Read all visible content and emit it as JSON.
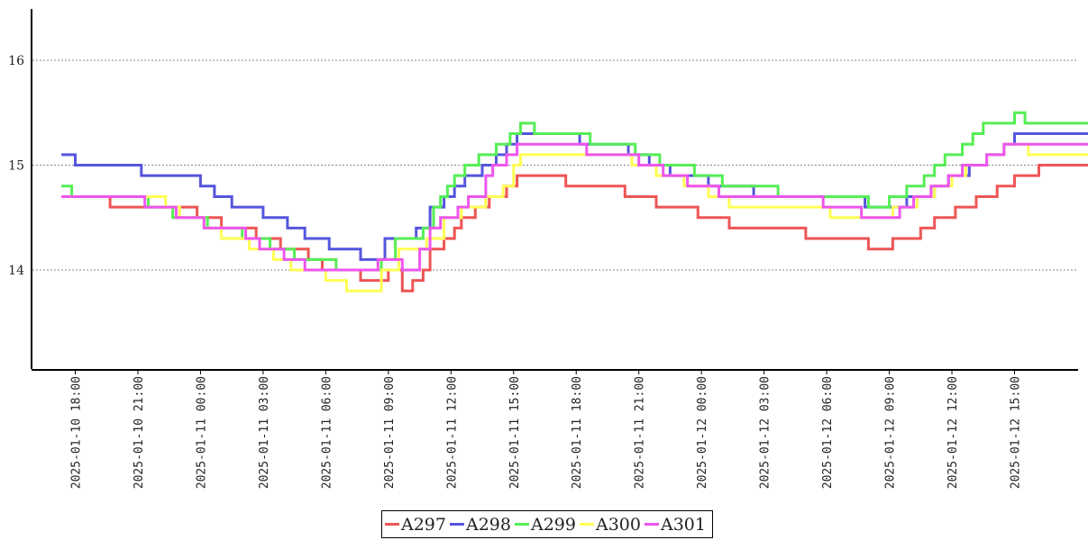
{
  "chart_data": {
    "type": "line",
    "step": true,
    "title": "",
    "xlabel": "",
    "ylabel": "",
    "y_ticks": [
      14,
      15,
      16
    ],
    "ylim": [
      13.05,
      16.5
    ],
    "x_tick_labels": [
      "2025-01-10 18:00",
      "2025-01-10 21:00",
      "2025-01-11 00:00",
      "2025-01-11 03:00",
      "2025-01-11 06:00",
      "2025-01-11 09:00",
      "2025-01-11 12:00",
      "2025-01-11 15:00",
      "2025-01-11 18:00",
      "2025-01-11 21:00",
      "2025-01-12 00:00",
      "2025-01-12 03:00",
      "2025-01-12 06:00",
      "2025-01-12 09:00",
      "2025-01-12 12:00",
      "2025-01-12 15:00"
    ],
    "x_range": [
      "2025-01-10 17:20",
      "2025-01-12 18:50"
    ],
    "grid": "horizontal dotted",
    "legend_position": "bottom-center",
    "series": [
      {
        "name": "A297",
        "color": "#ee5555",
        "points": [
          [
            "2025-01-10 17:20",
            14.7
          ],
          [
            "2025-01-10 19:40",
            14.6
          ],
          [
            "2025-01-10 23:50",
            14.5
          ],
          [
            "2025-01-11 01:00",
            14.4
          ],
          [
            "2025-01-11 02:40",
            14.3
          ],
          [
            "2025-01-11 03:50",
            14.2
          ],
          [
            "2025-01-11 05:10",
            14.1
          ],
          [
            "2025-01-11 05:50",
            14.0
          ],
          [
            "2025-01-11 07:40",
            13.9
          ],
          [
            "2025-01-11 09:00",
            14.0
          ],
          [
            "2025-01-11 09:40",
            13.8
          ],
          [
            "2025-01-11 10:10",
            13.9
          ],
          [
            "2025-01-11 10:40",
            14.0
          ],
          [
            "2025-01-11 11:00",
            14.2
          ],
          [
            "2025-01-11 11:40",
            14.3
          ],
          [
            "2025-01-11 12:10",
            14.4
          ],
          [
            "2025-01-11 12:30",
            14.5
          ],
          [
            "2025-01-11 13:10",
            14.6
          ],
          [
            "2025-01-11 13:50",
            14.7
          ],
          [
            "2025-01-11 14:40",
            14.8
          ],
          [
            "2025-01-11 15:10",
            14.9
          ],
          [
            "2025-01-11 17:30",
            14.8
          ],
          [
            "2025-01-11 20:20",
            14.7
          ],
          [
            "2025-01-11 21:50",
            14.6
          ],
          [
            "2025-01-11 23:50",
            14.5
          ],
          [
            "2025-01-12 01:20",
            14.4
          ],
          [
            "2025-01-12 05:00",
            14.3
          ],
          [
            "2025-01-12 08:00",
            14.2
          ],
          [
            "2025-01-12 09:10",
            14.3
          ],
          [
            "2025-01-12 10:30",
            14.4
          ],
          [
            "2025-01-12 11:10",
            14.5
          ],
          [
            "2025-01-12 12:10",
            14.6
          ],
          [
            "2025-01-12 13:10",
            14.7
          ],
          [
            "2025-01-12 14:10",
            14.8
          ],
          [
            "2025-01-12 15:00",
            14.9
          ],
          [
            "2025-01-12 16:10",
            15.0
          ],
          [
            "2025-01-12 18:50",
            15.0
          ]
        ]
      },
      {
        "name": "A298",
        "color": "#5555dd",
        "points": [
          [
            "2025-01-10 17:20",
            15.1
          ],
          [
            "2025-01-10 18:00",
            15.0
          ],
          [
            "2025-01-10 21:10",
            14.9
          ],
          [
            "2025-01-11 00:00",
            14.8
          ],
          [
            "2025-01-11 00:40",
            14.7
          ],
          [
            "2025-01-11 01:30",
            14.6
          ],
          [
            "2025-01-11 03:00",
            14.5
          ],
          [
            "2025-01-11 04:10",
            14.4
          ],
          [
            "2025-01-11 05:00",
            14.3
          ],
          [
            "2025-01-11 06:10",
            14.2
          ],
          [
            "2025-01-11 07:40",
            14.1
          ],
          [
            "2025-01-11 08:50",
            14.3
          ],
          [
            "2025-01-11 10:20",
            14.4
          ],
          [
            "2025-01-11 11:00",
            14.6
          ],
          [
            "2025-01-11 11:40",
            14.7
          ],
          [
            "2025-01-11 12:10",
            14.8
          ],
          [
            "2025-01-11 12:40",
            14.9
          ],
          [
            "2025-01-11 13:30",
            15.0
          ],
          [
            "2025-01-11 14:10",
            15.1
          ],
          [
            "2025-01-11 14:40",
            15.2
          ],
          [
            "2025-01-11 15:10",
            15.3
          ],
          [
            "2025-01-11 18:10",
            15.2
          ],
          [
            "2025-01-11 20:30",
            15.1
          ],
          [
            "2025-01-11 21:30",
            15.0
          ],
          [
            "2025-01-11 22:30",
            14.9
          ],
          [
            "2025-01-12 00:20",
            14.8
          ],
          [
            "2025-01-12 02:30",
            14.7
          ],
          [
            "2025-01-12 07:50",
            14.6
          ],
          [
            "2025-01-12 09:50",
            14.7
          ],
          [
            "2025-01-12 11:10",
            14.8
          ],
          [
            "2025-01-12 11:50",
            14.9
          ],
          [
            "2025-01-12 12:50",
            15.0
          ],
          [
            "2025-01-12 13:40",
            15.1
          ],
          [
            "2025-01-12 14:30",
            15.2
          ],
          [
            "2025-01-12 15:00",
            15.3
          ],
          [
            "2025-01-12 18:50",
            15.3
          ]
        ]
      },
      {
        "name": "A299",
        "color": "#55ee55",
        "points": [
          [
            "2025-01-10 17:20",
            14.8
          ],
          [
            "2025-01-10 17:50",
            14.7
          ],
          [
            "2025-01-10 21:30",
            14.6
          ],
          [
            "2025-01-10 22:40",
            14.5
          ],
          [
            "2025-01-11 00:20",
            14.4
          ],
          [
            "2025-01-11 02:00",
            14.3
          ],
          [
            "2025-01-11 03:20",
            14.2
          ],
          [
            "2025-01-11 04:30",
            14.1
          ],
          [
            "2025-01-11 06:30",
            14.0
          ],
          [
            "2025-01-11 08:40",
            14.1
          ],
          [
            "2025-01-11 09:20",
            14.3
          ],
          [
            "2025-01-11 10:40",
            14.4
          ],
          [
            "2025-01-11 11:10",
            14.6
          ],
          [
            "2025-01-11 11:30",
            14.7
          ],
          [
            "2025-01-11 11:50",
            14.8
          ],
          [
            "2025-01-11 12:10",
            14.9
          ],
          [
            "2025-01-11 12:40",
            15.0
          ],
          [
            "2025-01-11 13:20",
            15.1
          ],
          [
            "2025-01-11 14:10",
            15.2
          ],
          [
            "2025-01-11 14:50",
            15.3
          ],
          [
            "2025-01-11 15:20",
            15.4
          ],
          [
            "2025-01-11 16:00",
            15.3
          ],
          [
            "2025-01-11 18:40",
            15.2
          ],
          [
            "2025-01-11 20:50",
            15.1
          ],
          [
            "2025-01-11 22:00",
            15.0
          ],
          [
            "2025-01-11 23:40",
            14.9
          ],
          [
            "2025-01-12 01:00",
            14.8
          ],
          [
            "2025-01-12 03:40",
            14.7
          ],
          [
            "2025-01-12 08:00",
            14.6
          ],
          [
            "2025-01-12 09:00",
            14.7
          ],
          [
            "2025-01-12 09:50",
            14.8
          ],
          [
            "2025-01-12 10:40",
            14.9
          ],
          [
            "2025-01-12 11:10",
            15.0
          ],
          [
            "2025-01-12 11:40",
            15.1
          ],
          [
            "2025-01-12 12:30",
            15.2
          ],
          [
            "2025-01-12 13:00",
            15.3
          ],
          [
            "2025-01-12 13:30",
            15.4
          ],
          [
            "2025-01-12 15:00",
            15.5
          ],
          [
            "2025-01-12 15:30",
            15.4
          ],
          [
            "2025-01-12 18:50",
            15.4
          ]
        ]
      },
      {
        "name": "A300",
        "color": "#ffff55",
        "points": [
          [
            "2025-01-10 17:20",
            14.7
          ],
          [
            "2025-01-10 22:20",
            14.6
          ],
          [
            "2025-01-10 23:00",
            14.5
          ],
          [
            "2025-01-11 00:10",
            14.4
          ],
          [
            "2025-01-11 01:00",
            14.3
          ],
          [
            "2025-01-11 02:20",
            14.2
          ],
          [
            "2025-01-11 03:30",
            14.1
          ],
          [
            "2025-01-11 04:20",
            14.0
          ],
          [
            "2025-01-11 06:00",
            13.9
          ],
          [
            "2025-01-11 07:00",
            13.8
          ],
          [
            "2025-01-11 08:40",
            14.0
          ],
          [
            "2025-01-11 09:30",
            14.2
          ],
          [
            "2025-01-11 10:50",
            14.3
          ],
          [
            "2025-01-11 11:40",
            14.5
          ],
          [
            "2025-01-11 12:30",
            14.6
          ],
          [
            "2025-01-11 13:40",
            14.7
          ],
          [
            "2025-01-11 14:30",
            14.8
          ],
          [
            "2025-01-11 15:00",
            15.0
          ],
          [
            "2025-01-11 15:20",
            15.1
          ],
          [
            "2025-01-11 20:40",
            15.0
          ],
          [
            "2025-01-11 21:50",
            14.9
          ],
          [
            "2025-01-11 23:10",
            14.8
          ],
          [
            "2025-01-12 00:20",
            14.7
          ],
          [
            "2025-01-12 01:20",
            14.6
          ],
          [
            "2025-01-12 06:10",
            14.5
          ],
          [
            "2025-01-12 09:10",
            14.6
          ],
          [
            "2025-01-12 10:20",
            14.7
          ],
          [
            "2025-01-12 11:10",
            14.8
          ],
          [
            "2025-01-12 12:00",
            14.9
          ],
          [
            "2025-01-12 12:40",
            15.0
          ],
          [
            "2025-01-12 13:40",
            15.1
          ],
          [
            "2025-01-12 14:30",
            15.2
          ],
          [
            "2025-01-12 15:40",
            15.1
          ],
          [
            "2025-01-12 18:50",
            15.1
          ]
        ]
      },
      {
        "name": "A301",
        "color": "#ee55ee",
        "points": [
          [
            "2025-01-10 17:20",
            14.7
          ],
          [
            "2025-01-10 21:20",
            14.6
          ],
          [
            "2025-01-10 22:50",
            14.5
          ],
          [
            "2025-01-11 00:10",
            14.4
          ],
          [
            "2025-01-11 02:10",
            14.3
          ],
          [
            "2025-01-11 02:50",
            14.2
          ],
          [
            "2025-01-11 04:00",
            14.1
          ],
          [
            "2025-01-11 05:00",
            14.0
          ],
          [
            "2025-01-11 08:30",
            14.1
          ],
          [
            "2025-01-11 09:40",
            14.0
          ],
          [
            "2025-01-11 10:30",
            14.2
          ],
          [
            "2025-01-11 11:00",
            14.4
          ],
          [
            "2025-01-11 11:30",
            14.5
          ],
          [
            "2025-01-11 12:20",
            14.6
          ],
          [
            "2025-01-11 12:50",
            14.7
          ],
          [
            "2025-01-11 13:40",
            14.9
          ],
          [
            "2025-01-11 14:00",
            15.0
          ],
          [
            "2025-01-11 14:40",
            15.1
          ],
          [
            "2025-01-11 15:10",
            15.2
          ],
          [
            "2025-01-11 18:30",
            15.1
          ],
          [
            "2025-01-11 21:00",
            15.0
          ],
          [
            "2025-01-11 22:10",
            14.9
          ],
          [
            "2025-01-11 23:20",
            14.8
          ],
          [
            "2025-01-12 00:50",
            14.7
          ],
          [
            "2025-01-12 05:50",
            14.6
          ],
          [
            "2025-01-12 07:40",
            14.5
          ],
          [
            "2025-01-12 09:30",
            14.6
          ],
          [
            "2025-01-12 10:10",
            14.7
          ],
          [
            "2025-01-12 11:00",
            14.8
          ],
          [
            "2025-01-12 11:50",
            14.9
          ],
          [
            "2025-01-12 12:30",
            15.0
          ],
          [
            "2025-01-12 13:40",
            15.1
          ],
          [
            "2025-01-12 14:30",
            15.2
          ],
          [
            "2025-01-12 18:50",
            15.2
          ]
        ]
      }
    ]
  }
}
